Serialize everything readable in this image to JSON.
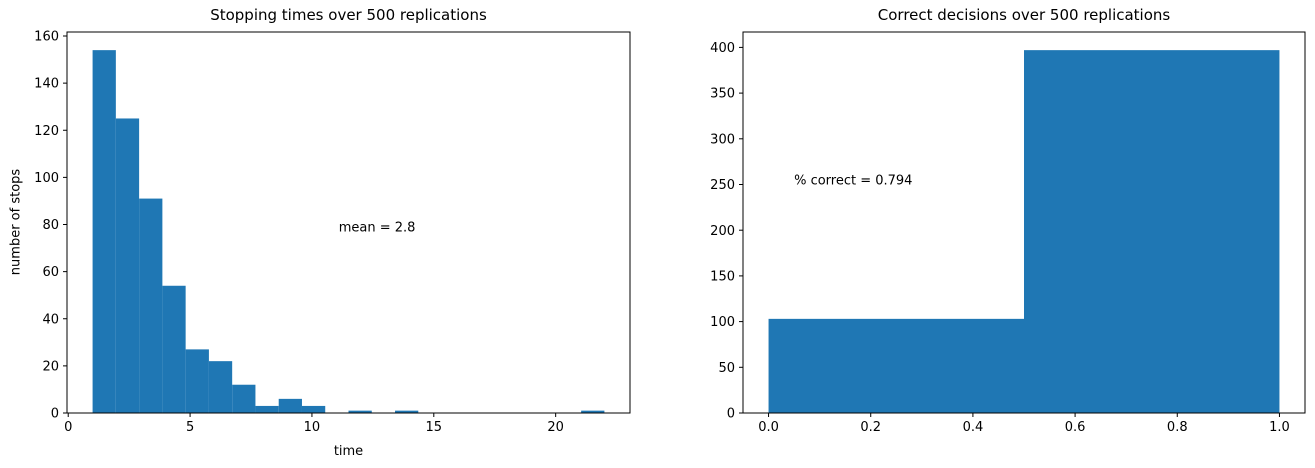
{
  "figure": {
    "background": "#ffffff",
    "text_color": "#000000",
    "spine_color": "#000000"
  },
  "chart_data": [
    {
      "type": "bar",
      "subtype": "histogram",
      "title": "Stopping times over 500 replications",
      "xlabel": "time",
      "ylabel": "number of stops",
      "bar_color": "#1f77b4",
      "bin_start": 1.0,
      "bin_width": 0.9545454545,
      "counts": [
        154,
        125,
        91,
        54,
        27,
        22,
        12,
        3,
        6,
        3,
        0,
        1,
        0,
        1,
        0,
        0,
        0,
        0,
        0,
        0,
        0,
        1
      ],
      "total_replications": 500,
      "xlim": [
        -0.05,
        23.05
      ],
      "ylim": [
        0,
        161.7
      ],
      "xticks": [
        0,
        5,
        10,
        15,
        20
      ],
      "xtick_labels": [
        "0",
        "5",
        "10",
        "15",
        "20"
      ],
      "yticks": [
        0,
        20,
        40,
        60,
        80,
        100,
        120,
        140,
        160
      ],
      "ytick_labels": [
        "0",
        "20",
        "40",
        "60",
        "80",
        "100",
        "120",
        "140",
        "160"
      ],
      "grid": false,
      "annotation": {
        "text": "mean = 2.8",
        "x": 11.1,
        "y": 77
      }
    },
    {
      "type": "bar",
      "subtype": "histogram",
      "title": "Correct decisions over 500 replications",
      "xlabel": "",
      "ylabel": "",
      "bar_color": "#1f77b4",
      "bin_start": 0.0,
      "bin_width": 0.5,
      "counts": [
        103,
        397
      ],
      "total_replications": 500,
      "xlim": [
        -0.05,
        1.05
      ],
      "ylim": [
        0,
        416.85
      ],
      "xticks": [
        0.0,
        0.2,
        0.4,
        0.6,
        0.8,
        1.0
      ],
      "xtick_labels": [
        "0.0",
        "0.2",
        "0.4",
        "0.6",
        "0.8",
        "1.0"
      ],
      "yticks": [
        0,
        50,
        100,
        150,
        200,
        250,
        300,
        350,
        400
      ],
      "ytick_labels": [
        "0",
        "50",
        "100",
        "150",
        "200",
        "250",
        "300",
        "350",
        "400"
      ],
      "grid": false,
      "annotation": {
        "text": "% correct = 0.794",
        "x": 0.05,
        "y": 250
      }
    }
  ]
}
